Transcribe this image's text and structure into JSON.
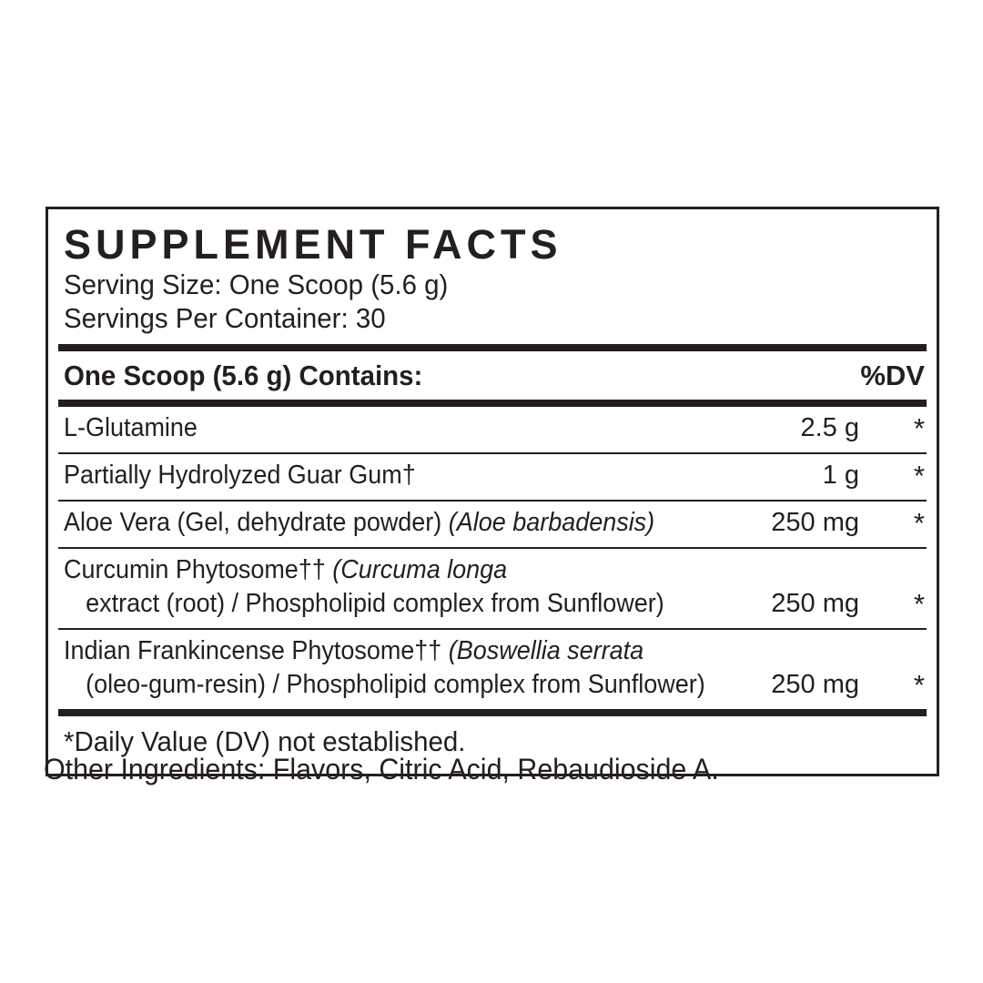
{
  "colors": {
    "ink": "#231f20",
    "background": "#ffffff"
  },
  "panel": {
    "title": "SUPPLEMENT FACTS",
    "serving_size": "Serving Size: One Scoop (5.6 g)",
    "servings_per_container": "Servings Per Container: 30",
    "header": {
      "left": "One Scoop (5.6 g) Contains:",
      "right": "%DV"
    },
    "rows": [
      {
        "lines": [
          [
            {
              "t": "L-Glutamine"
            }
          ]
        ],
        "amount": "2.5 g",
        "dv": "*"
      },
      {
        "lines": [
          [
            {
              "t": "Partially Hydrolyzed Guar Gum†"
            }
          ]
        ],
        "amount": "1 g",
        "dv": "*"
      },
      {
        "lines": [
          [
            {
              "t": "Aloe Vera (Gel, dehydrate powder) "
            },
            {
              "t": "(Aloe barbadensis)",
              "i": true
            }
          ]
        ],
        "amount": "250 mg",
        "dv": "*"
      },
      {
        "lines": [
          [
            {
              "t": "Curcumin Phytosome†† "
            },
            {
              "t": "(Curcuma longa",
              "i": true
            }
          ],
          [
            {
              "t": "extract (root) / Phospholipid complex from Sunflower)"
            }
          ]
        ],
        "amount": "250 mg",
        "dv": "*"
      },
      {
        "lines": [
          [
            {
              "t": "Indian Frankincense Phytosome†† "
            },
            {
              "t": "(Boswellia serrata",
              "i": true
            }
          ],
          [
            {
              "t": "(oleo-gum-resin) / Phospholipid complex from Sunflower)"
            }
          ]
        ],
        "amount": "250 mg",
        "dv": "*"
      }
    ],
    "footnote": "*Daily Value (DV) not established."
  },
  "other_ingredients": "Other Ingredients: Flavors, Citric Acid, Rebaudioside A."
}
